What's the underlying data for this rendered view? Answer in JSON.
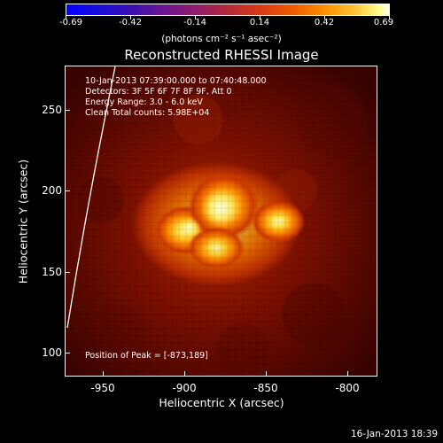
{
  "colorbar": {
    "ticks": [
      "-0.69",
      "-0.42",
      "-0.14",
      "0.14",
      "0.42",
      "0.69"
    ],
    "units": "(photons cm⁻² s⁻¹ asec⁻²)"
  },
  "title": "Reconstructed RHESSI Image",
  "info": {
    "time_range": "10-Jan-2013 07:39:00.000 to 07:40:48.000",
    "detectors": "Detectors: 3F 5F 6F 7F 8F 9F, Att 0",
    "energy": "Energy Range: 3.0 - 6.0 keV",
    "clean": "Clean     Total counts: 5.98E+04",
    "peak": "Position of Peak = [-873,189]"
  },
  "axes": {
    "xlabel": "Heliocentric X (arcsec)",
    "ylabel": "Heliocentric Y (arcsec)",
    "xticks": [
      "-950",
      "-900",
      "-850",
      "-800"
    ],
    "yticks": [
      "250",
      "200",
      "150",
      "100"
    ]
  },
  "datestamp": "16-Jan-2013 18:39",
  "colors": {
    "background": "#000000",
    "frame": "#ffffff"
  }
}
